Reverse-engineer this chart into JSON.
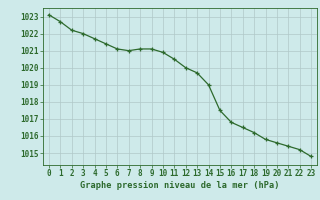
{
  "x": [
    0,
    1,
    2,
    3,
    4,
    5,
    6,
    7,
    8,
    9,
    10,
    11,
    12,
    13,
    14,
    15,
    16,
    17,
    18,
    19,
    20,
    21,
    22,
    23
  ],
  "y": [
    1023.1,
    1022.7,
    1022.2,
    1022.0,
    1021.7,
    1021.4,
    1021.1,
    1021.0,
    1021.1,
    1021.1,
    1020.9,
    1020.5,
    1020.0,
    1019.7,
    1019.0,
    1017.5,
    1016.8,
    1016.5,
    1016.2,
    1015.8,
    1015.6,
    1015.4,
    1015.2,
    1014.8
  ],
  "line_color": "#2d6a2d",
  "marker_color": "#2d6a2d",
  "bg_color": "#ceeaea",
  "grid_color": "#b0c8c8",
  "ylabel_ticks": [
    1015,
    1016,
    1017,
    1018,
    1019,
    1020,
    1021,
    1022,
    1023
  ],
  "ylim": [
    1014.3,
    1023.5
  ],
  "xlim": [
    -0.5,
    23.5
  ],
  "xlabel": "Graphe pression niveau de la mer (hPa)",
  "xlabel_color": "#2d6a2d",
  "tick_label_color": "#2d6a2d",
  "tick_fontsize": 5.5,
  "xlabel_fontsize": 6.2
}
